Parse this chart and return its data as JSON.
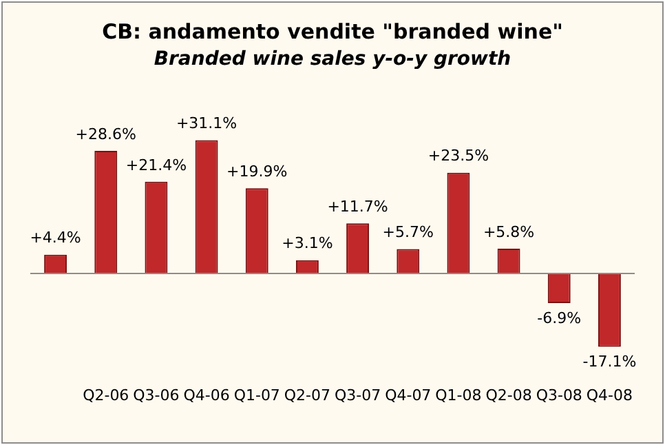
{
  "chart_data": {
    "type": "bar",
    "title": "CB: andamento vendite \"branded wine\"",
    "subtitle": "Branded wine sales y-o-y growth",
    "categories": [
      null,
      "Q2-06",
      "Q3-06",
      "Q4-06",
      "Q1-07",
      "Q2-07",
      "Q3-07",
      "Q4-07",
      "Q1-08",
      "Q2-08",
      "Q3-08",
      "Q4-08"
    ],
    "values": [
      4.4,
      28.6,
      21.4,
      31.1,
      19.9,
      3.1,
      11.7,
      5.7,
      23.5,
      5.8,
      -6.9,
      -17.1
    ],
    "value_labels": [
      "+4.4%",
      "+28.6%",
      "+21.4%",
      "+31.1%",
      "+19.9%",
      "+3.1%",
      "+11.7%",
      "+5.7%",
      "+23.5%",
      "+5.8%",
      "-6.9%",
      "-17.1%"
    ],
    "color": "#c0282a",
    "legend": false,
    "grid": false
  }
}
